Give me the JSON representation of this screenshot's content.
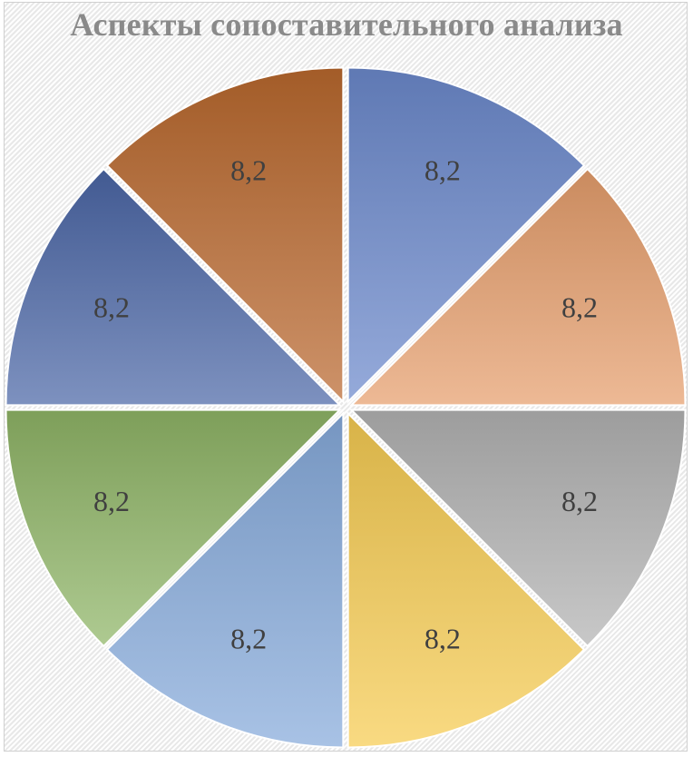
{
  "chart_data": {
    "type": "pie",
    "title": "Аспекты сопоставительного анализа",
    "series": [
      {
        "values": [
          8.2,
          8.2,
          8.2,
          8.2,
          8.2,
          8.2,
          8.2,
          8.2
        ],
        "labels": [
          "8,2",
          "8,2",
          "8,2",
          "8,2",
          "8,2",
          "8,2",
          "8,2",
          "8,2"
        ]
      }
    ],
    "slice_colors": [
      "#6c89cc",
      "#e69e6c",
      "#b2b2b2",
      "#f6cb52",
      "#86aadb",
      "#8fb566",
      "#4b66a6",
      "#b9682e"
    ],
    "exploded": true,
    "legend": "none"
  }
}
